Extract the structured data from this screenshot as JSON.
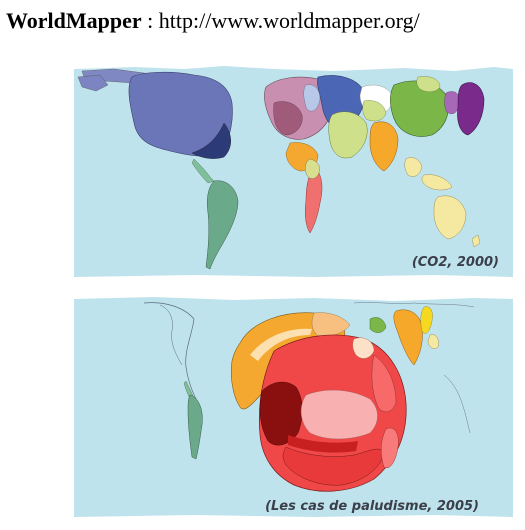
{
  "header": {
    "brand": "WorldMapper",
    "separator": " : ",
    "url": "http://www.worldmapper.org/"
  },
  "maps": [
    {
      "caption": "(CO2, 2000)"
    },
    {
      "caption": "(Les cas de paludisme, 2005)"
    }
  ],
  "colors": {
    "ocean": "#bfe3ec",
    "north_america": "#6a76b8",
    "europe": "#c98fb0",
    "russia": "#4a66b4",
    "middle_east": "#cfe08a",
    "china": "#7ab648",
    "japan": "#7a2a8a",
    "india": "#f5a82a",
    "africa": "#f07070",
    "south_america": "#6aaa8a",
    "malaria_africa_red": "#f04848",
    "malaria_africa_dark": "#8a1010",
    "malaria_west_africa": "#f5a830"
  }
}
